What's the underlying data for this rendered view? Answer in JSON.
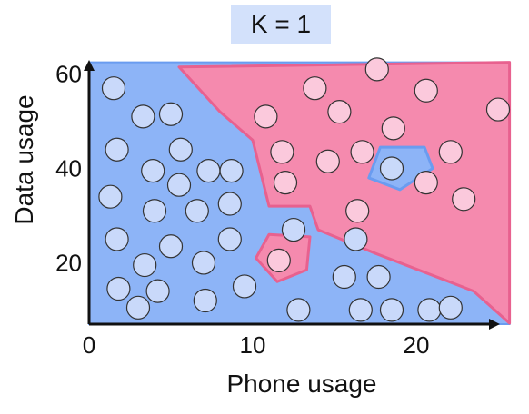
{
  "chart_data": {
    "type": "scatter",
    "title": "K = 1",
    "xlabel": "Phone usage",
    "ylabel": "Data usage",
    "xlim": [
      0,
      25
    ],
    "ylim": [
      7,
      63
    ],
    "xticks": [
      0,
      10,
      20
    ],
    "yticks": [
      20,
      40,
      60
    ],
    "grid": false,
    "colors": {
      "class_blue_region": "#8db4f7",
      "class_blue_border": "#6a9cf0",
      "class_pink_region": "#f58aae",
      "class_pink_border": "#e8618f",
      "point_blue_fill": "#c9d9fa",
      "point_pink_fill": "#fbc9dc",
      "point_stroke": "#333333"
    },
    "regions": {
      "pink_main": [
        [
          5.5,
          61.5
        ],
        [
          25.7,
          62.5
        ],
        [
          25.7,
          7.2
        ],
        [
          23.5,
          14
        ],
        [
          17.5,
          22
        ],
        [
          14,
          27
        ],
        [
          13.5,
          32
        ],
        [
          11,
          32
        ],
        [
          10,
          46
        ],
        [
          8,
          52
        ]
      ],
      "blue_island": [
        [
          17.1,
          38
        ],
        [
          17.8,
          44.5
        ],
        [
          20.5,
          44.5
        ],
        [
          21,
          40
        ],
        [
          19,
          35.5
        ]
      ],
      "pink_island": [
        [
          10.2,
          21
        ],
        [
          11,
          26
        ],
        [
          13.5,
          25.5
        ],
        [
          13.3,
          18.5
        ],
        [
          11.5,
          16
        ]
      ]
    },
    "series": [
      {
        "class": "blue",
        "points": [
          [
            1.5,
            57
          ],
          [
            3.3,
            51
          ],
          [
            5,
            51.5
          ],
          [
            1.7,
            44
          ],
          [
            5.6,
            44
          ],
          [
            3.9,
            39.5
          ],
          [
            5.5,
            36.5
          ],
          [
            7.3,
            39.5
          ],
          [
            8.7,
            39.5
          ],
          [
            1.3,
            34
          ],
          [
            4,
            31
          ],
          [
            6.6,
            31
          ],
          [
            8.6,
            32.5
          ],
          [
            1.7,
            25
          ],
          [
            5,
            23.5
          ],
          [
            8.6,
            25
          ],
          [
            3.4,
            19.5
          ],
          [
            7,
            20
          ],
          [
            1.8,
            14.5
          ],
          [
            4.2,
            14
          ],
          [
            9.5,
            15
          ],
          [
            3,
            10.5
          ],
          [
            7.1,
            12
          ],
          [
            12.5,
            27
          ],
          [
            16.3,
            25
          ],
          [
            15.6,
            17
          ],
          [
            17.7,
            17
          ],
          [
            12.8,
            10
          ],
          [
            16.6,
            10
          ],
          [
            18.5,
            10
          ],
          [
            20.8,
            10
          ],
          [
            22.1,
            10.5
          ]
        ]
      },
      {
        "class": "pink",
        "points": [
          [
            17.6,
            61
          ],
          [
            13.8,
            57
          ],
          [
            20.6,
            56.5
          ],
          [
            15.3,
            52
          ],
          [
            10.8,
            51
          ],
          [
            25,
            52.5
          ],
          [
            18.6,
            48.5
          ],
          [
            11.8,
            43.5
          ],
          [
            14.6,
            41.5
          ],
          [
            16.7,
            43.5
          ],
          [
            22.1,
            43.5
          ],
          [
            12,
            37
          ],
          [
            20.6,
            37
          ],
          [
            16.4,
            31
          ],
          [
            22.9,
            33.5
          ]
        ]
      },
      {
        "class": "blue-in-pink",
        "points": [
          [
            18.5,
            40
          ]
        ]
      },
      {
        "class": "pink-in-blue",
        "points": [
          [
            11.6,
            20.5
          ]
        ]
      }
    ]
  }
}
